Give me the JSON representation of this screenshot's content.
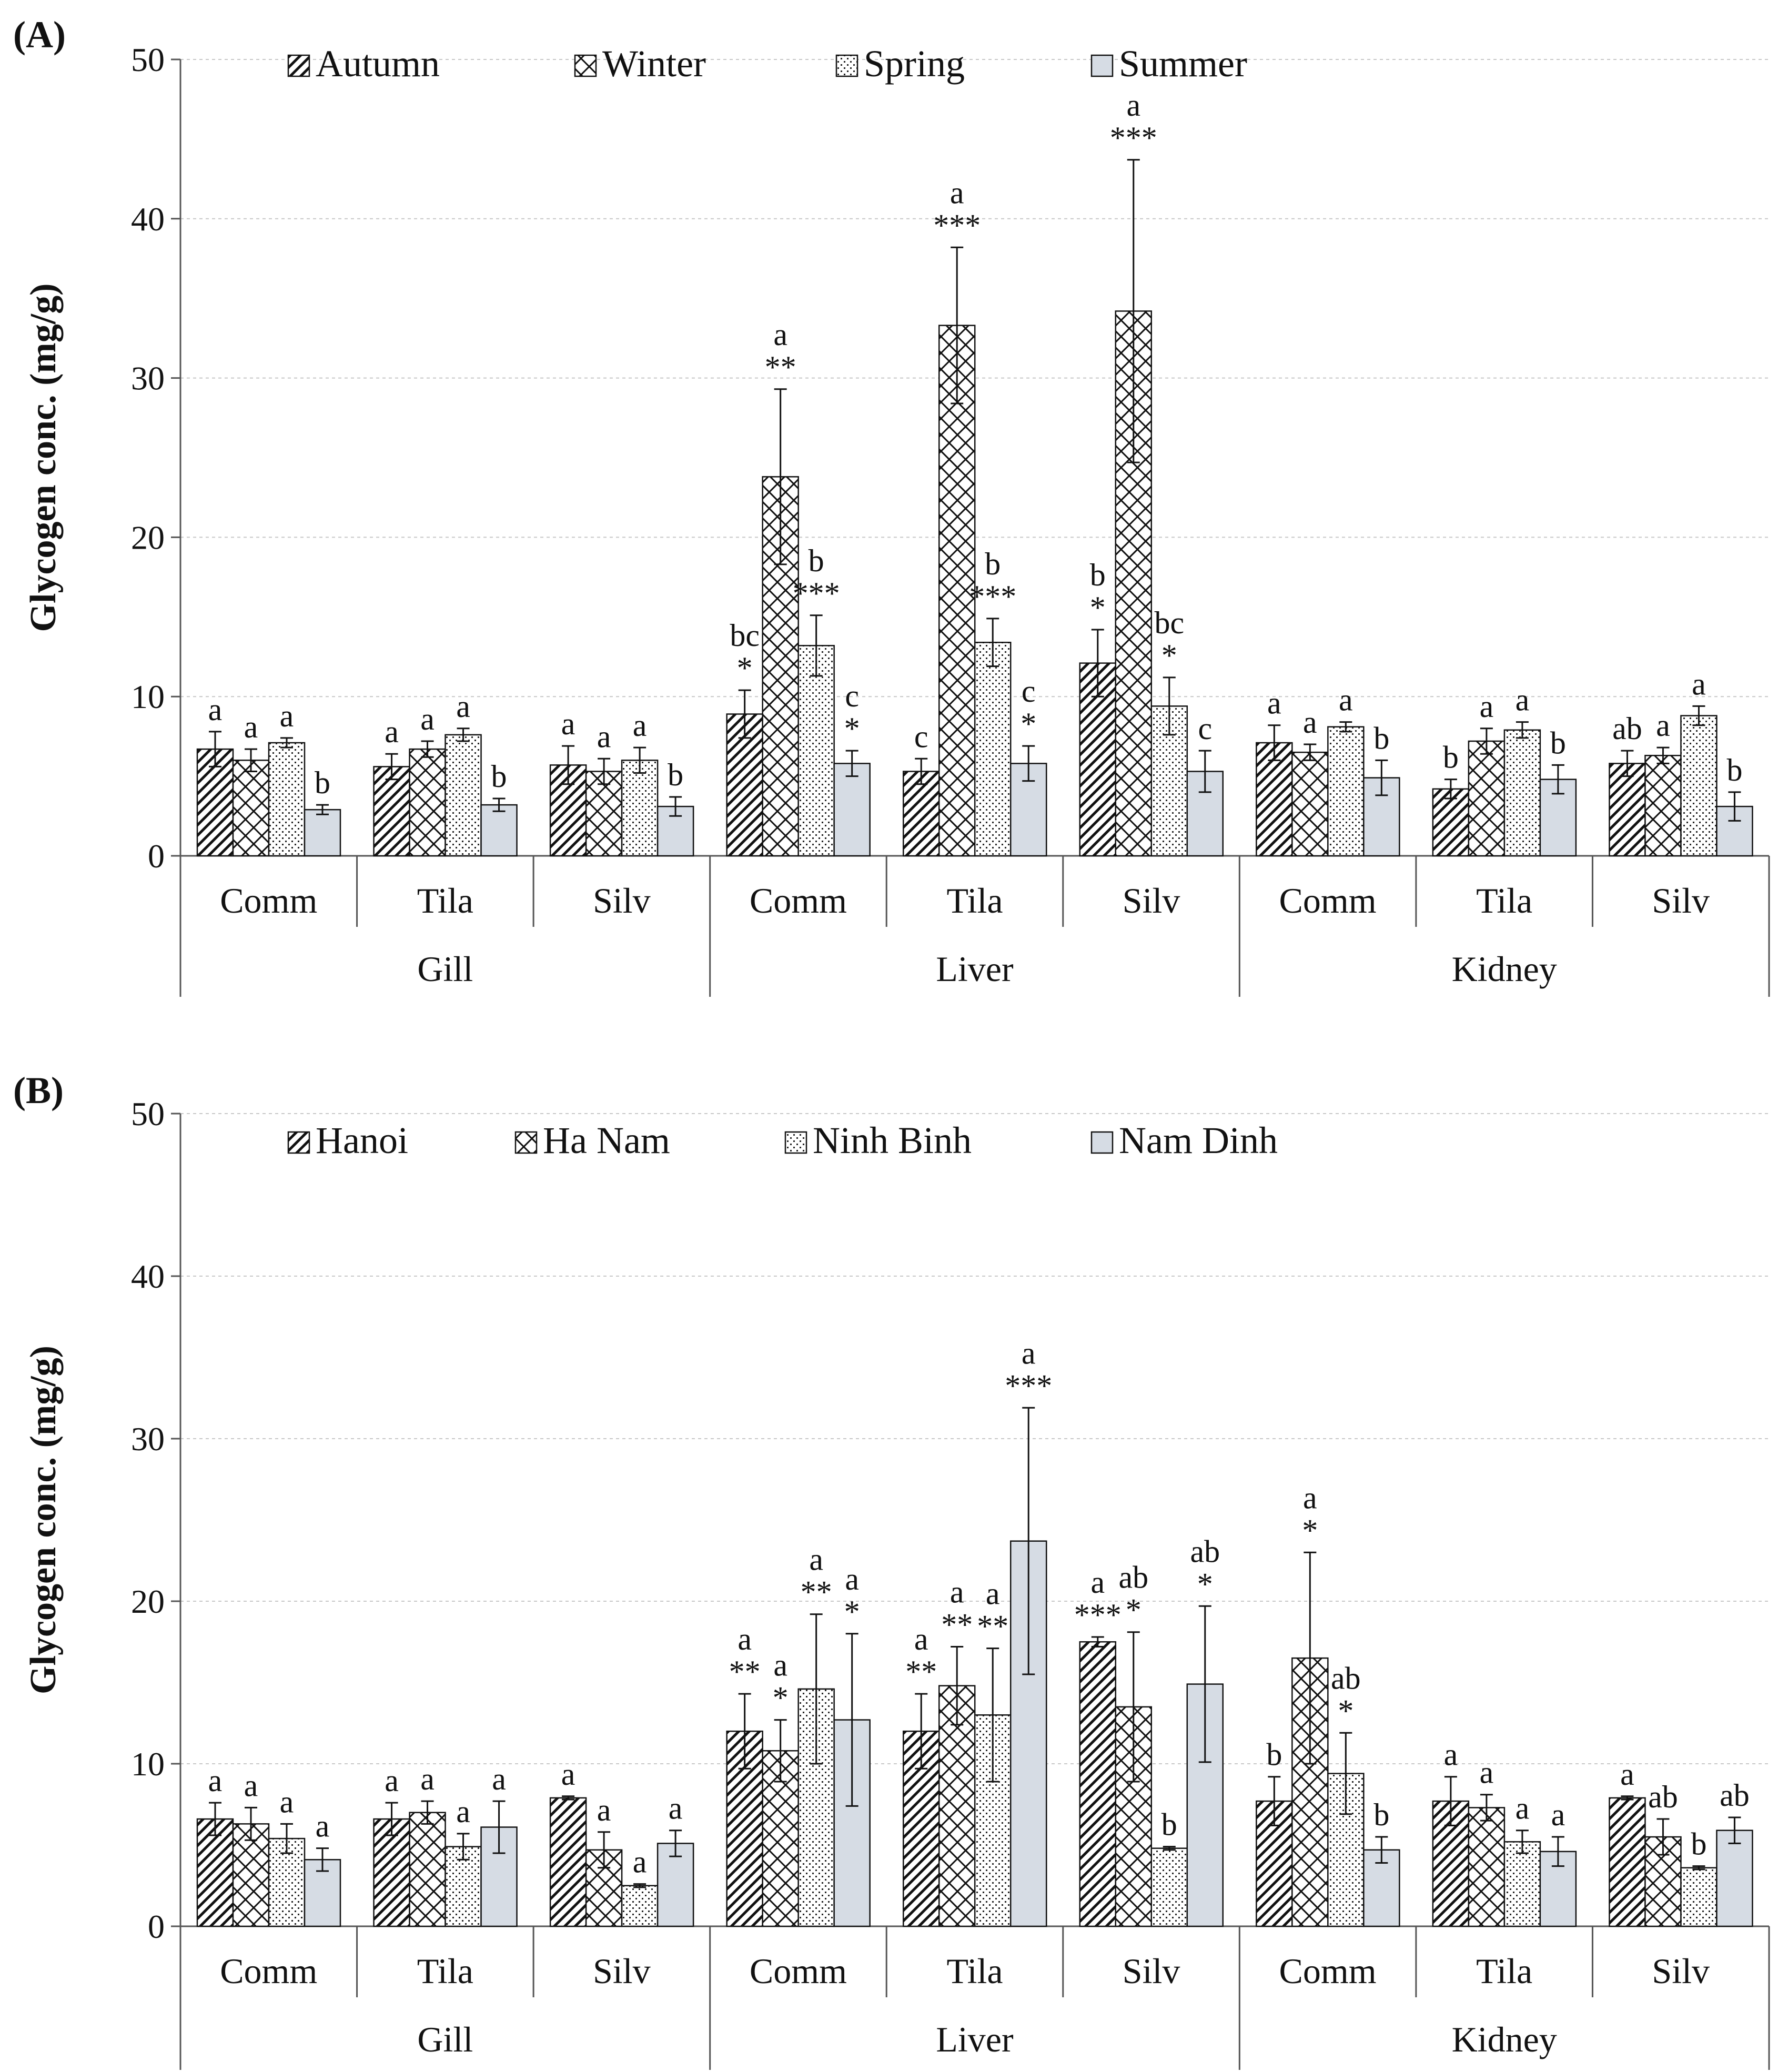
{
  "chart_data": [
    {
      "type": "bar",
      "panel_label": "(A)",
      "ylabel": "Glycogen conc. (mg/g)",
      "ylim": [
        0,
        50
      ],
      "yticks": [
        "0",
        "10",
        "20",
        "30",
        "40",
        "50"
      ],
      "tissues": [
        "Gill",
        "Liver",
        "Kidney"
      ],
      "species": [
        "Comm",
        "Tila",
        "Silv"
      ],
      "series": [
        {
          "name": "Autumn",
          "pattern": "diag"
        },
        {
          "name": "Winter",
          "pattern": "cross"
        },
        {
          "name": "Spring",
          "pattern": "dots"
        },
        {
          "name": "Summer",
          "pattern": "solid"
        }
      ],
      "groups": [
        {
          "tissue": "Gill",
          "species": "Comm",
          "values": [
            6.7,
            6.0,
            7.1,
            2.9
          ],
          "errors": [
            1.1,
            0.7,
            0.3,
            0.3
          ],
          "annotations": [
            "a",
            "a",
            "a",
            "b"
          ]
        },
        {
          "tissue": "Gill",
          "species": "Tila",
          "values": [
            5.6,
            6.7,
            7.6,
            3.2
          ],
          "errors": [
            0.8,
            0.5,
            0.4,
            0.4
          ],
          "annotations": [
            "a",
            "a",
            "a",
            "b"
          ]
        },
        {
          "tissue": "Gill",
          "species": "Silv",
          "values": [
            5.7,
            5.3,
            6.0,
            3.1
          ],
          "errors": [
            1.2,
            0.8,
            0.8,
            0.6
          ],
          "annotations": [
            "a",
            "a",
            "a",
            "b"
          ]
        },
        {
          "tissue": "Liver",
          "species": "Comm",
          "values": [
            8.9,
            23.8,
            13.2,
            5.8
          ],
          "errors": [
            1.5,
            5.5,
            1.9,
            0.8
          ],
          "annotations": [
            "bc\n*",
            "a\n**",
            "b\n***",
            "c\n*"
          ]
        },
        {
          "tissue": "Liver",
          "species": "Tila",
          "values": [
            5.3,
            33.3,
            13.4,
            5.8
          ],
          "errors": [
            0.8,
            4.9,
            1.5,
            1.1
          ],
          "annotations": [
            "c",
            "a\n***",
            "b\n***",
            "c\n*"
          ]
        },
        {
          "tissue": "Liver",
          "species": "Silv",
          "values": [
            12.1,
            34.2,
            9.4,
            5.3
          ],
          "errors": [
            2.1,
            9.5,
            1.8,
            1.3
          ],
          "annotations": [
            "b\n*",
            "a\n***",
            "bc\n*",
            "c"
          ]
        },
        {
          "tissue": "Kidney",
          "species": "Comm",
          "values": [
            7.1,
            6.5,
            8.1,
            4.9
          ],
          "errors": [
            1.1,
            0.5,
            0.3,
            1.1
          ],
          "annotations": [
            "a",
            "a",
            "a",
            "b"
          ]
        },
        {
          "tissue": "Kidney",
          "species": "Tila",
          "values": [
            4.2,
            7.2,
            7.9,
            4.8
          ],
          "errors": [
            0.6,
            0.8,
            0.5,
            0.9
          ],
          "annotations": [
            "b",
            "a",
            "a",
            "b"
          ]
        },
        {
          "tissue": "Kidney",
          "species": "Silv",
          "values": [
            5.8,
            6.3,
            8.8,
            3.1
          ],
          "errors": [
            0.8,
            0.5,
            0.6,
            0.9
          ],
          "annotations": [
            "ab",
            "a",
            "a",
            "b"
          ]
        }
      ]
    },
    {
      "type": "bar",
      "panel_label": "(B)",
      "ylabel": "Glycogen conc. (mg/g)",
      "ylim": [
        0,
        50
      ],
      "yticks": [
        "0",
        "10",
        "20",
        "30",
        "40",
        "50"
      ],
      "tissues": [
        "Gill",
        "Liver",
        "Kidney"
      ],
      "species": [
        "Comm",
        "Tila",
        "Silv"
      ],
      "series": [
        {
          "name": "Hanoi",
          "pattern": "diag"
        },
        {
          "name": "Ha Nam",
          "pattern": "cross"
        },
        {
          "name": "Ninh Binh",
          "pattern": "dots"
        },
        {
          "name": "Nam Dinh",
          "pattern": "solid"
        }
      ],
      "groups": [
        {
          "tissue": "Gill",
          "species": "Comm",
          "values": [
            6.6,
            6.3,
            5.4,
            4.1
          ],
          "errors": [
            1.0,
            1.0,
            0.9,
            0.7
          ],
          "annotations": [
            "a",
            "a",
            "a",
            "a"
          ]
        },
        {
          "tissue": "Gill",
          "species": "Tila",
          "values": [
            6.6,
            7.0,
            4.9,
            6.1
          ],
          "errors": [
            1.0,
            0.7,
            0.8,
            1.6
          ],
          "annotations": [
            "a",
            "a",
            "a",
            "a"
          ]
        },
        {
          "tissue": "Gill",
          "species": "Silv",
          "values": [
            7.9,
            4.7,
            2.5,
            5.1
          ],
          "errors": [
            0.1,
            1.1,
            0.1,
            0.8
          ],
          "annotations": [
            "a",
            "a",
            "a",
            "a"
          ]
        },
        {
          "tissue": "Liver",
          "species": "Comm",
          "values": [
            12.0,
            10.8,
            14.6,
            12.7
          ],
          "errors": [
            2.3,
            1.9,
            4.6,
            5.3
          ],
          "annotations": [
            "a\n**",
            "a\n*",
            "a\n**",
            "a\n*"
          ]
        },
        {
          "tissue": "Liver",
          "species": "Tila",
          "values": [
            12.0,
            14.8,
            13.0,
            23.7
          ],
          "errors": [
            2.3,
            2.4,
            4.1,
            8.2
          ],
          "annotations": [
            "a\n**",
            "a\n**",
            "a\n**",
            "a\n***"
          ]
        },
        {
          "tissue": "Liver",
          "species": "Silv",
          "values": [
            17.5,
            13.5,
            4.8,
            14.9
          ],
          "errors": [
            0.3,
            4.6,
            0.1,
            4.8
          ],
          "annotations": [
            "a\n***",
            "ab\n*",
            "b",
            "ab\n*"
          ]
        },
        {
          "tissue": "Kidney",
          "species": "Comm",
          "values": [
            7.7,
            16.5,
            9.4,
            4.7
          ],
          "errors": [
            1.5,
            6.5,
            2.5,
            0.8
          ],
          "annotations": [
            "b",
            "a\n*",
            "ab\n*",
            "b"
          ]
        },
        {
          "tissue": "Kidney",
          "species": "Tila",
          "values": [
            7.7,
            7.3,
            5.2,
            4.6
          ],
          "errors": [
            1.5,
            0.8,
            0.7,
            0.9
          ],
          "annotations": [
            "a",
            "a",
            "a",
            "a"
          ]
        },
        {
          "tissue": "Kidney",
          "species": "Silv",
          "values": [
            7.9,
            5.5,
            3.6,
            5.9
          ],
          "errors": [
            0.1,
            1.1,
            0.1,
            0.8
          ],
          "annotations": [
            "a",
            "ab",
            "b",
            "ab"
          ]
        }
      ]
    }
  ]
}
